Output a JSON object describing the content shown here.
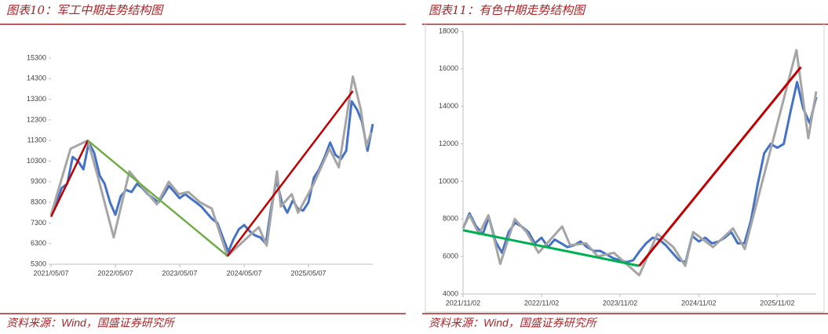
{
  "chart_data": [
    {
      "type": "line",
      "title": "图表10：军工中期走势结构图",
      "source": "资料来源：Wind，国盛证券研究所",
      "frame": false,
      "xlim": [
        "2021/05/07",
        "2026/05/07"
      ],
      "xticks": [
        "2021/05/07",
        "2022/05/07",
        "2023/05/07",
        "2024/05/07",
        "2025/05/07"
      ],
      "ylim": [
        5300,
        15300
      ],
      "yticks": [
        5300,
        6300,
        7300,
        8300,
        9300,
        10300,
        11300,
        12300,
        13300,
        14300,
        15300
      ],
      "series": [
        {
          "color": "#4472c4",
          "width": 3,
          "x": [
            "2021/05/07",
            "2021/06/07",
            "2021/07/07",
            "2021/08/07",
            "2021/09/07",
            "2021/10/07",
            "2021/11/07",
            "2021/12/07",
            "2022/01/07",
            "2022/02/07",
            "2022/03/07",
            "2022/04/07",
            "2022/05/07",
            "2022/06/07",
            "2022/07/07",
            "2022/08/07",
            "2022/09/07",
            "2022/10/07",
            "2022/11/07",
            "2022/12/07",
            "2023/01/07",
            "2023/02/07",
            "2023/03/07",
            "2023/04/07",
            "2023/05/07",
            "2023/06/07",
            "2023/07/07",
            "2023/08/07",
            "2023/09/07",
            "2023/10/07",
            "2023/11/07",
            "2023/12/07",
            "2024/01/07",
            "2024/02/07",
            "2024/03/07",
            "2024/04/07",
            "2024/05/07",
            "2024/06/07",
            "2024/07/07",
            "2024/08/07",
            "2024/09/07",
            "2024/10/07",
            "2024/11/07",
            "2024/12/07",
            "2025/01/07",
            "2025/02/07",
            "2025/03/07",
            "2025/04/07",
            "2025/05/07",
            "2025/06/07",
            "2025/07/07",
            "2025/08/07",
            "2025/09/07",
            "2025/10/07",
            "2025/11/07",
            "2025/12/07",
            "2026/01/07",
            "2026/02/07",
            "2026/03/07",
            "2026/04/07",
            "2026/05/07"
          ],
          "values": [
            7700,
            8300,
            9000,
            9200,
            10500,
            10300,
            9900,
            11200,
            10700,
            9600,
            9200,
            8300,
            7700,
            8600,
            8900,
            8800,
            9200,
            9000,
            8700,
            8500,
            8300,
            8700,
            9100,
            8800,
            8500,
            8700,
            8500,
            8300,
            8100,
            7800,
            7500,
            7300,
            6600,
            5900,
            6500,
            7000,
            7200,
            6900,
            6700,
            6600,
            6300,
            8000,
            9400,
            8300,
            7800,
            8400,
            8000,
            7900,
            8300,
            9500,
            9900,
            10500,
            11200,
            10600,
            10400,
            10800,
            13200,
            12800,
            12200,
            10800,
            12100
          ]
        },
        {
          "color": "#a5a5a5",
          "width": 3,
          "x": [
            "2021/05/07",
            "2021/08/26",
            "2021/12/02",
            "2022/01/29",
            "2022/04/28",
            "2022/07/26",
            "2022/12/29",
            "2023/03/06",
            "2023/05/02",
            "2023/06/25",
            "2023/08/31",
            "2023/11/05",
            "2024/02/02",
            "2024/07/29",
            "2024/09/12",
            "2024/11/09",
            "2024/12/01",
            "2025/02/01",
            "2025/03/09",
            "2025/06/06",
            "2025/09/03",
            "2025/10/26",
            "2026/01/14",
            "2026/02/28",
            "2026/03/31",
            "2026/04/27"
          ],
          "values": [
            7700,
            10900,
            11300,
            9500,
            6600,
            9800,
            8200,
            9300,
            8700,
            8800,
            8300,
            8000,
            5700,
            7100,
            6200,
            9800,
            8100,
            8700,
            7800,
            9200,
            10900,
            10000,
            14400,
            12800,
            11000,
            11700
          ]
        },
        {
          "color": "#c00000",
          "width": 2.5,
          "x": [
            "2021/05/07",
            "2021/12/02"
          ],
          "values": [
            7600,
            11300
          ]
        },
        {
          "color": "#70ad47",
          "width": 2.5,
          "x": [
            "2021/12/02",
            "2024/02/02"
          ],
          "values": [
            11300,
            5700
          ]
        },
        {
          "color": "#c00000",
          "width": 2.5,
          "x": [
            "2024/02/02",
            "2026/01/14"
          ],
          "values": [
            5700,
            13700
          ]
        }
      ]
    },
    {
      "type": "line",
      "title": "图表11：有色中期走势结构图",
      "source": "资料来源：Wind，国盛证券研究所",
      "frame": true,
      "xlim": [
        "2021/11/02",
        "2026/05/02"
      ],
      "xticks": [
        "2021/11/02",
        "2022/11/02",
        "2023/11/02",
        "2024/11/02",
        "2025/11/02"
      ],
      "ylim": [
        4000,
        18000
      ],
      "yticks": [
        4000,
        6000,
        8000,
        10000,
        12000,
        14000,
        16000,
        18000
      ],
      "series": [
        {
          "color": "#4472c4",
          "width": 3,
          "x": [
            "2021/11/02",
            "2021/12/02",
            "2022/01/02",
            "2022/02/02",
            "2022/03/02",
            "2022/04/02",
            "2022/05/02",
            "2022/06/02",
            "2022/07/02",
            "2022/08/02",
            "2022/09/02",
            "2022/10/02",
            "2022/11/02",
            "2022/12/02",
            "2023/01/02",
            "2023/02/02",
            "2023/03/02",
            "2023/04/02",
            "2023/05/02",
            "2023/06/02",
            "2023/07/02",
            "2023/08/02",
            "2023/09/02",
            "2023/10/02",
            "2023/11/02",
            "2023/12/02",
            "2024/01/02",
            "2024/02/02",
            "2024/03/02",
            "2024/04/02",
            "2024/05/02",
            "2024/06/02",
            "2024/07/02",
            "2024/08/02",
            "2024/09/02",
            "2024/10/02",
            "2024/11/02",
            "2024/12/02",
            "2025/01/02",
            "2025/02/02",
            "2025/03/02",
            "2025/04/02",
            "2025/05/02",
            "2025/06/02",
            "2025/07/02",
            "2025/08/02",
            "2025/09/02",
            "2025/10/02",
            "2025/11/02",
            "2025/12/02",
            "2026/01/02",
            "2026/02/02",
            "2026/03/02",
            "2026/04/02",
            "2026/05/02"
          ],
          "values": [
            7500,
            8300,
            7600,
            7200,
            8100,
            6800,
            6200,
            7300,
            7800,
            7600,
            7300,
            6700,
            7000,
            6500,
            6900,
            6700,
            6500,
            6600,
            6800,
            6500,
            6300,
            6300,
            6100,
            5900,
            5800,
            5700,
            5800,
            6300,
            6700,
            7000,
            6900,
            6600,
            6200,
            5800,
            5700,
            7100,
            6800,
            7000,
            6700,
            6800,
            7000,
            7300,
            6700,
            6700,
            7900,
            9800,
            11500,
            12000,
            11800,
            12000,
            13700,
            15300,
            13900,
            13100,
            14500
          ]
        },
        {
          "color": "#a5a5a5",
          "width": 3,
          "x": [
            "2021/11/02",
            "2021/12/02",
            "2022/01/15",
            "2022/02/28",
            "2022/04/24",
            "2022/06/30",
            "2022/08/24",
            "2022/10/19",
            "2022/12/13",
            "2023/02/06",
            "2023/03/15",
            "2023/05/28",
            "2023/07/22",
            "2023/10/04",
            "2024/01/30",
            "2024/04/24",
            "2024/07/07",
            "2024/08/31",
            "2024/10/07",
            "2025/01/07",
            "2025/04/10",
            "2025/06/04",
            "2026/01/30",
            "2026/03/26",
            "2026/05/02"
          ],
          "values": [
            7500,
            8200,
            7200,
            8200,
            5600,
            8000,
            7300,
            6200,
            6900,
            7600,
            6600,
            6700,
            6000,
            6200,
            5000,
            7200,
            6500,
            5500,
            7300,
            6500,
            7500,
            6400,
            17000,
            12300,
            14800
          ]
        },
        {
          "color": "#00b050",
          "width": 3,
          "x": [
            "2021/11/02",
            "2024/01/30"
          ],
          "values": [
            7400,
            5500
          ]
        },
        {
          "color": "#c00000",
          "width": 3,
          "x": [
            "2024/01/30",
            "2026/02/20"
          ],
          "values": [
            5500,
            16100
          ]
        }
      ]
    }
  ]
}
